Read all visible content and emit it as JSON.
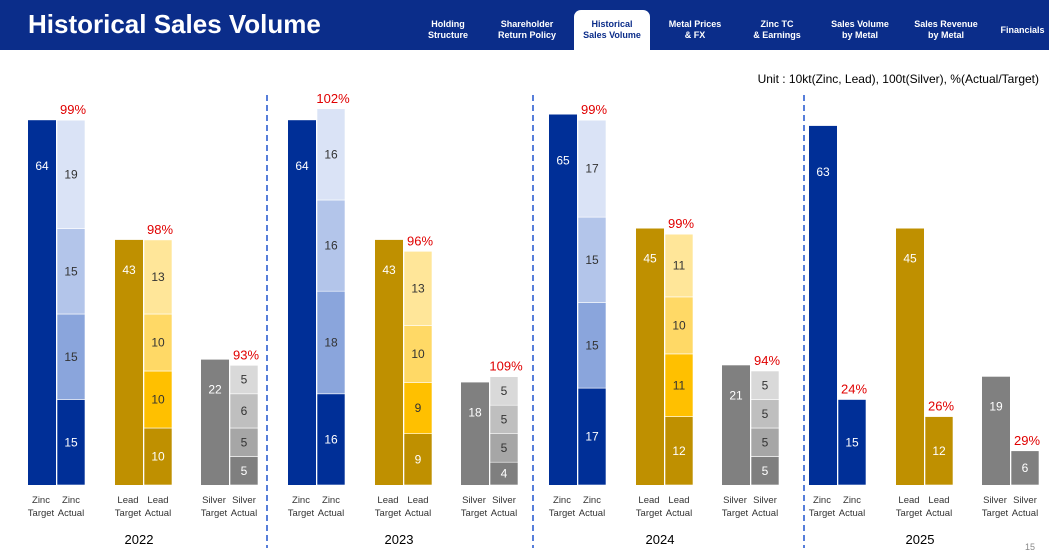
{
  "header": {
    "title": "Historical Sales Volume",
    "tabs": [
      {
        "label": "Holding\nStructure",
        "active": false
      },
      {
        "label": "Shareholder\nReturn Policy",
        "active": false
      },
      {
        "label": "Historical\nSales Volume",
        "active": true
      },
      {
        "label": "Metal Prices\n& FX",
        "active": false
      },
      {
        "label": "Zinc TC\n& Earnings",
        "active": false
      },
      {
        "label": "Sales Volume\nby Metal",
        "active": false
      },
      {
        "label": "Sales Revenue\nby Metal",
        "active": false
      },
      {
        "label": "Financials",
        "active": false
      }
    ]
  },
  "unit_note": "Unit : 10kt(Zinc, Lead), 100t(Silver), %(Actual/Target)",
  "page_number": "15",
  "colors": {
    "header_bg": "#0b2d8a",
    "zinc_target": "#002f97",
    "zinc_actual_segments": [
      "#002f97",
      "#8aa5dc",
      "#b3c5ea",
      "#dae3f6"
    ],
    "lead_target": "#bf9000",
    "lead_actual_segments": [
      "#bf9000",
      "#ffc000",
      "#ffd966",
      "#ffe699"
    ],
    "silver_target": "#808080",
    "silver_actual_segments": [
      "#7f7f7f",
      "#a6a6a6",
      "#bfbfbf",
      "#d9d9d9"
    ],
    "pct_text": "#e00000",
    "divider": "#2e5fd1"
  },
  "chart_data": {
    "type": "bar",
    "stacked_actual": true,
    "years": [
      "2022",
      "2023",
      "2024",
      "2025"
    ],
    "category_labels": [
      "Zinc\nTarget",
      "Zinc\nActual",
      "Lead\nTarget",
      "Lead\nActual",
      "Silver\nTarget",
      "Silver\nActual"
    ],
    "groups": [
      {
        "year": "2022",
        "zinc": {
          "target": 64,
          "actual": [
            15,
            15,
            15,
            19
          ],
          "pct": "99%"
        },
        "lead": {
          "target": 43,
          "actual": [
            10,
            10,
            10,
            13
          ],
          "pct": "98%"
        },
        "silver": {
          "target": 22,
          "actual": [
            5,
            5,
            6,
            5
          ],
          "pct": "93%"
        }
      },
      {
        "year": "2023",
        "zinc": {
          "target": 64,
          "actual": [
            16,
            18,
            16,
            16
          ],
          "pct": "102%"
        },
        "lead": {
          "target": 43,
          "actual": [
            9,
            9,
            10,
            13
          ],
          "pct": "96%"
        },
        "silver": {
          "target": 18,
          "actual": [
            4,
            5,
            5,
            5
          ],
          "pct": "109%"
        }
      },
      {
        "year": "2024",
        "zinc": {
          "target": 65,
          "actual": [
            17,
            15,
            15,
            17
          ],
          "pct": "99%"
        },
        "lead": {
          "target": 45,
          "actual": [
            12,
            11,
            10,
            11
          ],
          "pct": "99%"
        },
        "silver": {
          "target": 21,
          "actual": [
            5,
            5,
            5,
            5
          ],
          "pct": "94%"
        }
      },
      {
        "year": "2025",
        "zinc": {
          "target": 63,
          "actual": [
            15
          ],
          "pct": "24%"
        },
        "lead": {
          "target": 45,
          "actual": [
            12
          ],
          "pct": "26%"
        },
        "silver": {
          "target": 19,
          "actual": [
            6
          ],
          "pct": "29%"
        }
      }
    ]
  }
}
